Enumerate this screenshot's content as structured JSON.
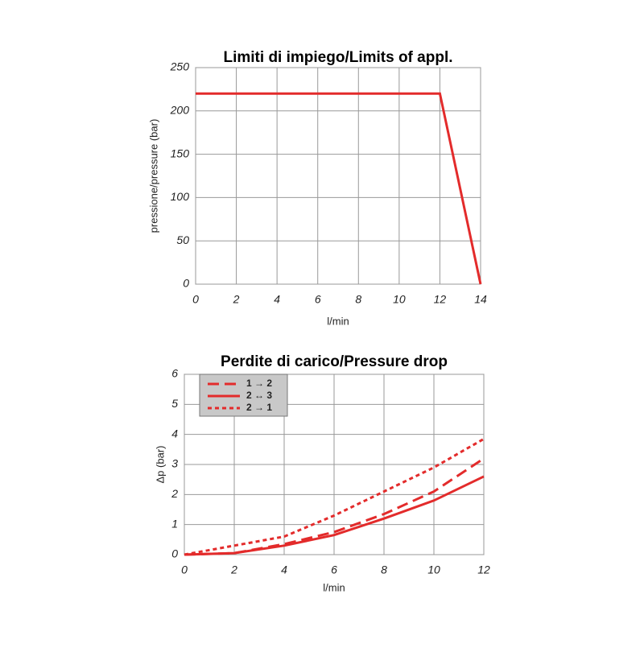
{
  "chart_data": [
    {
      "type": "line",
      "title": "Limiti di impiego/Limits of appl.",
      "x_label": "l/min",
      "y_label": "pressione/pressure (bar)",
      "xlim": [
        0,
        14
      ],
      "xticks": [
        0,
        2,
        4,
        6,
        8,
        10,
        12,
        14
      ],
      "ylim": [
        0,
        250
      ],
      "yticks": [
        0,
        50,
        100,
        150,
        200,
        250
      ],
      "grid": true,
      "series": [
        {
          "color": "#e32b2b",
          "style": "solid",
          "x": [
            0,
            12,
            14
          ],
          "values": [
            220,
            220,
            0
          ]
        }
      ]
    },
    {
      "type": "line",
      "title": "Perdite di carico/Pressure drop",
      "x_label": "l/min",
      "y_label": "Δp (bar)",
      "xlim": [
        0,
        12
      ],
      "xticks": [
        0,
        2,
        4,
        6,
        8,
        10,
        12
      ],
      "ylim": [
        0,
        6
      ],
      "yticks": [
        0,
        1,
        2,
        3,
        4,
        5,
        6
      ],
      "grid": true,
      "series": [
        {
          "name": "1 → 2",
          "color": "#e32b2b",
          "style": "dashed",
          "x": [
            0,
            2,
            4,
            6,
            8,
            10,
            12
          ],
          "values": [
            0,
            0.05,
            0.35,
            0.75,
            1.35,
            2.1,
            3.2
          ]
        },
        {
          "name": "2 ↔ 3",
          "color": "#e32b2b",
          "style": "solid",
          "x": [
            0,
            2,
            4,
            6,
            8,
            10,
            12
          ],
          "values": [
            0,
            0.05,
            0.3,
            0.65,
            1.2,
            1.8,
            2.6
          ]
        },
        {
          "name": "2 → 1",
          "color": "#e32b2b",
          "style": "dotted",
          "x": [
            0,
            2,
            4,
            6,
            8,
            10,
            12
          ],
          "values": [
            0,
            0.3,
            0.6,
            1.3,
            2.1,
            2.9,
            3.85
          ]
        }
      ]
    }
  ]
}
